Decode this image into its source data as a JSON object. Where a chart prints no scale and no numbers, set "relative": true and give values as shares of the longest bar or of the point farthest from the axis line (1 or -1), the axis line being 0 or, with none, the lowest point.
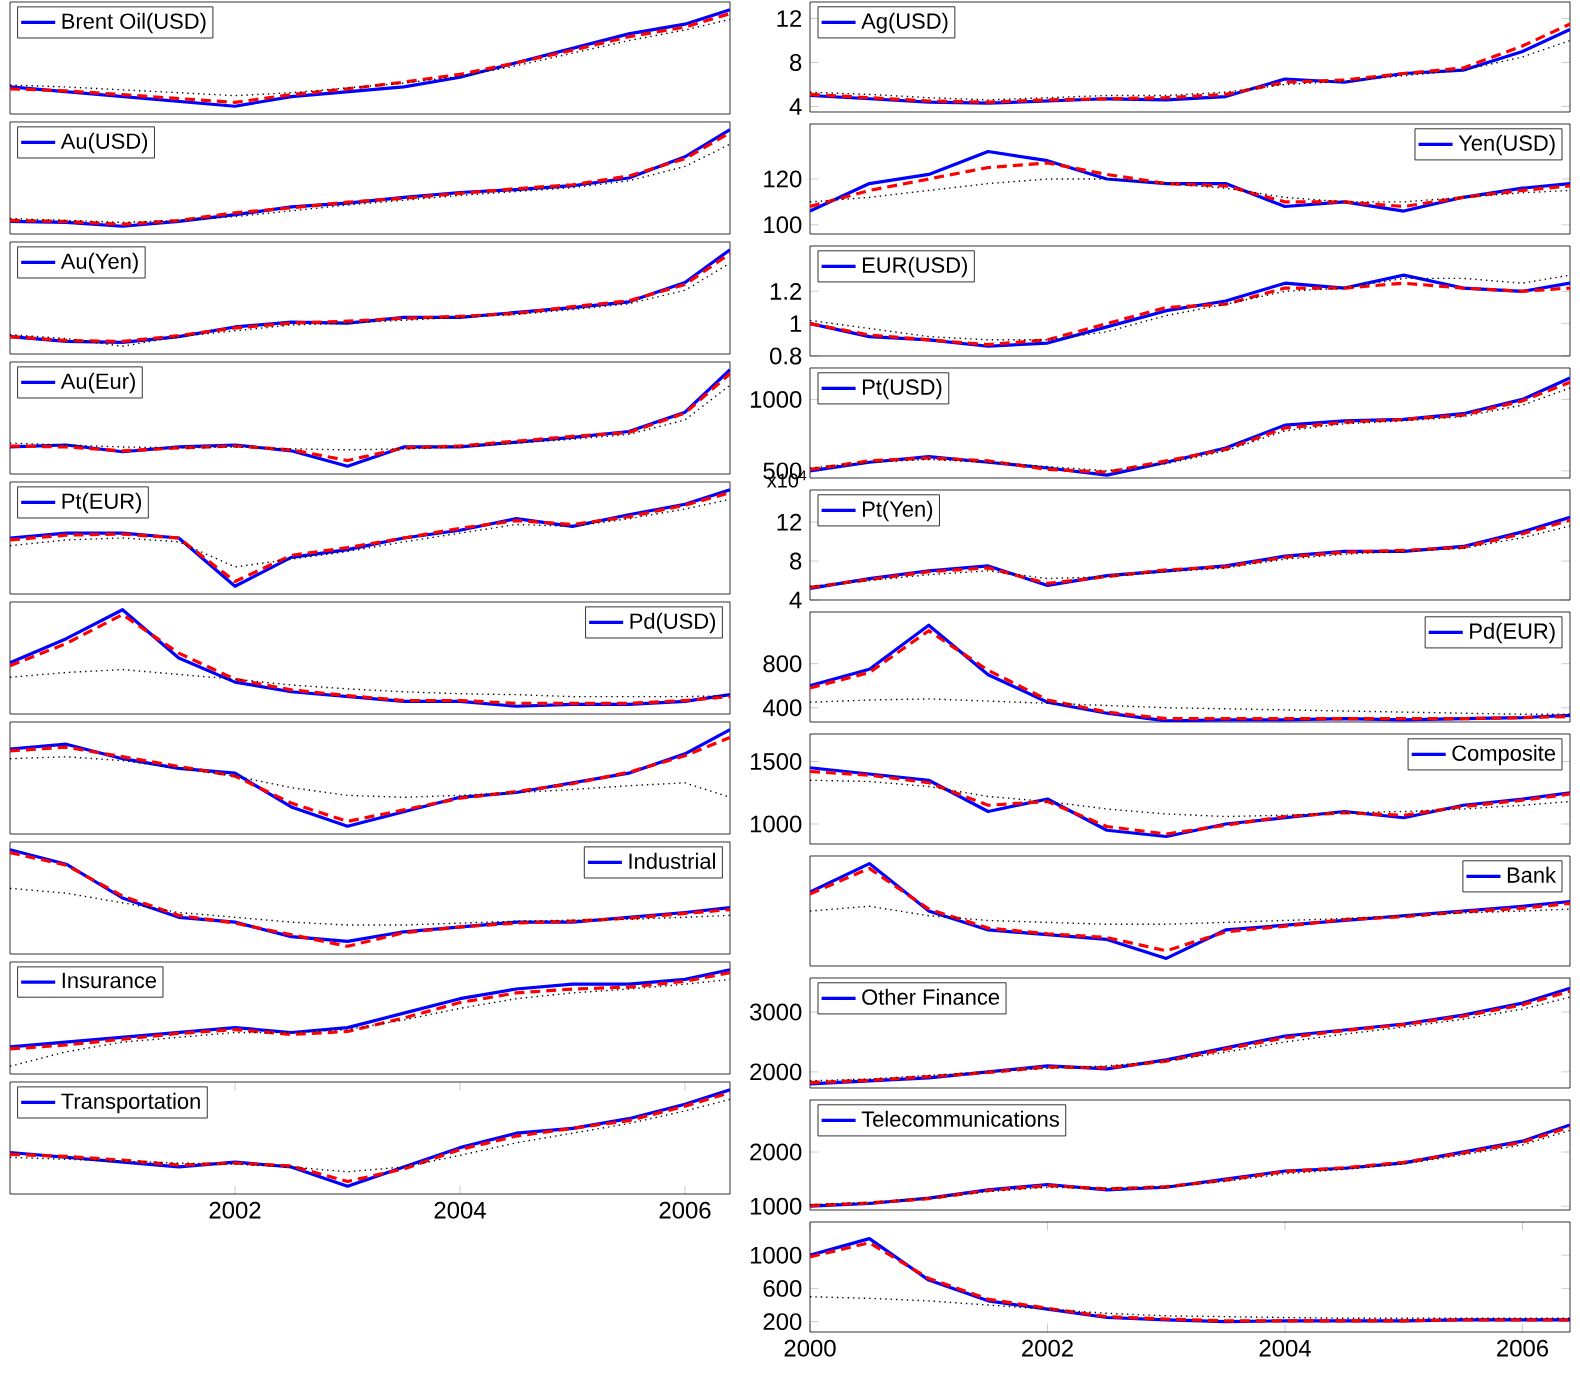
{
  "chart_data": [
    {
      "type": "line",
      "relative": true,
      "tick_labels": false,
      "legend": "top left",
      "xlim": [
        2000,
        2006.4
      ],
      "x": [
        2000,
        2000.5,
        2001,
        2001.5,
        2002,
        2002.5,
        2003,
        2003.5,
        2004,
        2004.5,
        2005,
        2005.5,
        2006,
        2006.4
      ],
      "series": [
        {
          "name": "Brent Oil(USD)",
          "color": "#0000ff",
          "line_style": "solid",
          "values": [
            0.2,
            0.15,
            0.1,
            0.05,
            0.0,
            0.1,
            0.15,
            0.2,
            0.3,
            0.45,
            0.6,
            0.75,
            0.85,
            1.0
          ]
        },
        {
          "color": "#ff0000",
          "line_style": "dashed",
          "values": [
            0.18,
            0.16,
            0.12,
            0.08,
            0.04,
            0.12,
            0.18,
            0.25,
            0.33,
            0.45,
            0.58,
            0.72,
            0.82,
            0.96
          ]
        },
        {
          "color": "#000000",
          "line_style": "dotted",
          "values": [
            0.22,
            0.2,
            0.17,
            0.14,
            0.11,
            0.14,
            0.19,
            0.24,
            0.31,
            0.42,
            0.55,
            0.68,
            0.79,
            0.9
          ]
        }
      ]
    },
    {
      "type": "line",
      "relative": true,
      "tick_labels": false,
      "legend": "top left",
      "xlim": [
        2000,
        2006.4
      ],
      "x": [
        2000,
        2000.5,
        2001,
        2001.5,
        2002,
        2002.5,
        2003,
        2003.5,
        2004,
        2004.5,
        2005,
        2005.5,
        2006,
        2006.4
      ],
      "series": [
        {
          "name": "Au(USD)",
          "color": "#0000ff",
          "line_style": "solid",
          "values": [
            0.05,
            0.04,
            0.0,
            0.05,
            0.12,
            0.2,
            0.24,
            0.3,
            0.35,
            0.38,
            0.42,
            0.5,
            0.72,
            1.0
          ]
        },
        {
          "color": "#ff0000",
          "line_style": "dashed",
          "values": [
            0.06,
            0.05,
            0.02,
            0.06,
            0.14,
            0.19,
            0.25,
            0.29,
            0.34,
            0.39,
            0.43,
            0.52,
            0.7,
            0.97
          ]
        },
        {
          "color": "#000000",
          "line_style": "dotted",
          "values": [
            0.08,
            0.06,
            0.04,
            0.06,
            0.1,
            0.16,
            0.22,
            0.27,
            0.32,
            0.36,
            0.4,
            0.47,
            0.62,
            0.85
          ]
        }
      ]
    },
    {
      "type": "line",
      "relative": true,
      "tick_labels": false,
      "legend": "top left",
      "xlim": [
        2000,
        2006.4
      ],
      "x": [
        2000,
        2000.5,
        2001,
        2001.5,
        2002,
        2002.5,
        2003,
        2003.5,
        2004,
        2004.5,
        2005,
        2005.5,
        2006,
        2006.4
      ],
      "series": [
        {
          "name": "Au(Yen)",
          "color": "#0000ff",
          "line_style": "solid",
          "values": [
            0.1,
            0.05,
            0.04,
            0.1,
            0.2,
            0.25,
            0.24,
            0.3,
            0.3,
            0.35,
            0.4,
            0.46,
            0.66,
            1.0
          ]
        },
        {
          "color": "#ff0000",
          "line_style": "dashed",
          "values": [
            0.1,
            0.06,
            0.05,
            0.11,
            0.19,
            0.24,
            0.26,
            0.29,
            0.31,
            0.34,
            0.41,
            0.47,
            0.64,
            0.96
          ]
        },
        {
          "color": "#000000",
          "line_style": "dotted",
          "values": [
            0.12,
            0.08,
            0.0,
            0.1,
            0.16,
            0.22,
            0.24,
            0.27,
            0.3,
            0.33,
            0.38,
            0.44,
            0.58,
            0.86
          ]
        }
      ]
    },
    {
      "type": "line",
      "relative": true,
      "tick_labels": false,
      "legend": "top left",
      "xlim": [
        2000,
        2006.4
      ],
      "x": [
        2000,
        2000.5,
        2001,
        2001.5,
        2002,
        2002.5,
        2003,
        2003.5,
        2004,
        2004.5,
        2005,
        2005.5,
        2006,
        2006.4
      ],
      "series": [
        {
          "name": "Au(Eur)",
          "color": "#0000ff",
          "line_style": "solid",
          "values": [
            0.2,
            0.22,
            0.15,
            0.2,
            0.22,
            0.16,
            0.0,
            0.2,
            0.2,
            0.25,
            0.3,
            0.36,
            0.56,
            1.0
          ]
        },
        {
          "color": "#ff0000",
          "line_style": "dashed",
          "values": [
            0.21,
            0.2,
            0.16,
            0.19,
            0.21,
            0.17,
            0.06,
            0.19,
            0.21,
            0.26,
            0.31,
            0.35,
            0.55,
            0.96
          ]
        },
        {
          "color": "#000000",
          "line_style": "dotted",
          "values": [
            0.24,
            0.22,
            0.2,
            0.19,
            0.2,
            0.18,
            0.17,
            0.18,
            0.2,
            0.24,
            0.28,
            0.33,
            0.48,
            0.84
          ]
        }
      ]
    },
    {
      "type": "line",
      "relative": true,
      "tick_labels": false,
      "legend": "top left",
      "xlim": [
        2000,
        2006.4
      ],
      "x": [
        2000,
        2000.5,
        2001,
        2001.5,
        2002,
        2002.5,
        2003,
        2003.5,
        2004,
        2004.5,
        2005,
        2005.5,
        2006,
        2006.4
      ],
      "series": [
        {
          "name": "Pt(EUR)",
          "color": "#0000ff",
          "line_style": "solid",
          "values": [
            0.5,
            0.55,
            0.55,
            0.5,
            0.0,
            0.3,
            0.38,
            0.5,
            0.58,
            0.7,
            0.62,
            0.74,
            0.85,
            1.0
          ]
        },
        {
          "color": "#ff0000",
          "line_style": "dashed",
          "values": [
            0.48,
            0.53,
            0.54,
            0.5,
            0.05,
            0.32,
            0.4,
            0.5,
            0.6,
            0.68,
            0.64,
            0.72,
            0.84,
            0.97
          ]
        },
        {
          "color": "#000000",
          "line_style": "dotted",
          "values": [
            0.42,
            0.48,
            0.5,
            0.46,
            0.2,
            0.28,
            0.36,
            0.46,
            0.55,
            0.64,
            0.62,
            0.7,
            0.8,
            0.9
          ]
        }
      ]
    },
    {
      "type": "line",
      "relative": true,
      "tick_labels": false,
      "legend": "top right",
      "xlim": [
        2000,
        2006.4
      ],
      "x": [
        2000,
        2000.5,
        2001,
        2001.5,
        2002,
        2002.5,
        2003,
        2003.5,
        2004,
        2004.5,
        2005,
        2005.5,
        2006,
        2006.4
      ],
      "series": [
        {
          "name": "Pd(USD)",
          "color": "#0000ff",
          "line_style": "solid",
          "values": [
            0.45,
            0.7,
            1.0,
            0.5,
            0.25,
            0.15,
            0.1,
            0.05,
            0.05,
            0.0,
            0.02,
            0.02,
            0.05,
            0.12
          ]
        },
        {
          "color": "#ff0000",
          "line_style": "dashed",
          "values": [
            0.42,
            0.65,
            0.95,
            0.55,
            0.28,
            0.17,
            0.11,
            0.06,
            0.06,
            0.03,
            0.03,
            0.03,
            0.06,
            0.1
          ]
        },
        {
          "color": "#000000",
          "line_style": "dotted",
          "values": [
            0.3,
            0.35,
            0.38,
            0.33,
            0.28,
            0.22,
            0.18,
            0.15,
            0.13,
            0.12,
            0.1,
            0.1,
            0.1,
            0.11
          ]
        }
      ]
    },
    {
      "type": "line",
      "relative": true,
      "tick_labels": false,
      "xlim": [
        2000,
        2006.4
      ],
      "x": [
        2000,
        2000.5,
        2001,
        2001.5,
        2002,
        2002.5,
        2003,
        2003.5,
        2004,
        2004.5,
        2005,
        2005.5,
        2006,
        2006.4
      ],
      "series": [
        {
          "color": "#0000ff",
          "line_style": "solid",
          "values": [
            0.8,
            0.85,
            0.7,
            0.6,
            0.55,
            0.2,
            0.0,
            0.15,
            0.3,
            0.35,
            0.45,
            0.55,
            0.75,
            1.0
          ]
        },
        {
          "color": "#ff0000",
          "line_style": "dashed",
          "values": [
            0.78,
            0.82,
            0.72,
            0.62,
            0.52,
            0.24,
            0.05,
            0.17,
            0.29,
            0.36,
            0.44,
            0.56,
            0.73,
            0.92
          ]
        },
        {
          "color": "#000000",
          "line_style": "dotted",
          "values": [
            0.7,
            0.72,
            0.68,
            0.6,
            0.52,
            0.4,
            0.32,
            0.3,
            0.32,
            0.35,
            0.38,
            0.42,
            0.45,
            0.3
          ]
        }
      ]
    },
    {
      "type": "line",
      "relative": true,
      "tick_labels": false,
      "legend": "top right",
      "xlim": [
        2000,
        2006.4
      ],
      "x": [
        2000,
        2000.5,
        2001,
        2001.5,
        2002,
        2002.5,
        2003,
        2003.5,
        2004,
        2004.5,
        2005,
        2005.5,
        2006,
        2006.4
      ],
      "series": [
        {
          "name": "Industrial",
          "color": "#0000ff",
          "line_style": "solid",
          "values": [
            1.0,
            0.85,
            0.5,
            0.3,
            0.25,
            0.1,
            0.05,
            0.15,
            0.2,
            0.25,
            0.25,
            0.3,
            0.35,
            0.4
          ]
        },
        {
          "color": "#ff0000",
          "line_style": "dashed",
          "values": [
            0.97,
            0.84,
            0.52,
            0.32,
            0.24,
            0.12,
            0.0,
            0.14,
            0.2,
            0.24,
            0.26,
            0.29,
            0.34,
            0.38
          ]
        },
        {
          "color": "#000000",
          "line_style": "dotted",
          "values": [
            0.6,
            0.55,
            0.45,
            0.35,
            0.3,
            0.25,
            0.22,
            0.22,
            0.24,
            0.26,
            0.27,
            0.28,
            0.3,
            0.32
          ]
        }
      ]
    },
    {
      "type": "line",
      "relative": true,
      "tick_labels": false,
      "legend": "top left",
      "xlim": [
        2000,
        2006.4
      ],
      "x": [
        2000,
        2000.5,
        2001,
        2001.5,
        2002,
        2002.5,
        2003,
        2003.5,
        2004,
        2004.5,
        2005,
        2005.5,
        2006,
        2006.4
      ],
      "series": [
        {
          "name": "Insurance",
          "color": "#0000ff",
          "line_style": "solid",
          "values": [
            0.2,
            0.25,
            0.3,
            0.35,
            0.4,
            0.35,
            0.4,
            0.55,
            0.7,
            0.8,
            0.85,
            0.85,
            0.9,
            1.0
          ]
        },
        {
          "color": "#ff0000",
          "line_style": "dashed",
          "values": [
            0.18,
            0.22,
            0.28,
            0.34,
            0.38,
            0.33,
            0.36,
            0.5,
            0.66,
            0.76,
            0.8,
            0.82,
            0.88,
            0.97
          ]
        },
        {
          "color": "#000000",
          "line_style": "dotted",
          "values": [
            0.0,
            0.15,
            0.25,
            0.3,
            0.35,
            0.35,
            0.38,
            0.48,
            0.6,
            0.7,
            0.76,
            0.8,
            0.85,
            0.9
          ]
        }
      ]
    },
    {
      "type": "line",
      "relative": true,
      "tick_labels": "x",
      "legend": "top left",
      "xlim": [
        2000,
        2006.4
      ],
      "xticks": [
        2002,
        2004,
        2006
      ],
      "x": [
        2000,
        2000.5,
        2001,
        2001.5,
        2002,
        2002.5,
        2003,
        2003.5,
        2004,
        2004.5,
        2005,
        2005.5,
        2006,
        2006.4
      ],
      "series": [
        {
          "name": "Transportation",
          "color": "#0000ff",
          "line_style": "solid",
          "values": [
            0.35,
            0.3,
            0.25,
            0.2,
            0.25,
            0.2,
            0.0,
            0.2,
            0.4,
            0.55,
            0.6,
            0.7,
            0.85,
            1.0
          ]
        },
        {
          "color": "#ff0000",
          "line_style": "dashed",
          "values": [
            0.33,
            0.31,
            0.27,
            0.22,
            0.24,
            0.21,
            0.05,
            0.18,
            0.38,
            0.52,
            0.6,
            0.68,
            0.83,
            0.97
          ]
        },
        {
          "color": "#000000",
          "line_style": "dotted",
          "values": [
            0.3,
            0.28,
            0.26,
            0.24,
            0.23,
            0.2,
            0.15,
            0.2,
            0.32,
            0.45,
            0.55,
            0.65,
            0.78,
            0.9
          ]
        }
      ]
    },
    {
      "type": "line",
      "tick_labels": "y",
      "legend": "top left",
      "xlim": [
        2000,
        2006.4
      ],
      "ylim": [
        3.5,
        13.5
      ],
      "yticks": [
        4,
        8,
        12
      ],
      "x": [
        2000,
        2000.5,
        2001,
        2001.5,
        2002,
        2002.5,
        2003,
        2003.5,
        2004,
        2004.5,
        2005,
        2005.5,
        2006,
        2006.4
      ],
      "series": [
        {
          "name": "Ag(USD)",
          "color": "#0000ff",
          "line_style": "solid",
          "values": [
            5,
            4.7,
            4.4,
            4.3,
            4.5,
            4.7,
            4.6,
            4.9,
            6.5,
            6.2,
            7,
            7.3,
            9,
            11
          ]
        },
        {
          "color": "#ff0000",
          "line_style": "dashed",
          "values": [
            5.1,
            4.8,
            4.5,
            4.4,
            4.6,
            4.7,
            4.8,
            5.1,
            6.2,
            6.4,
            7,
            7.5,
            9.5,
            11.5
          ]
        },
        {
          "color": "#000000",
          "line_style": "dotted",
          "values": [
            5.3,
            5.1,
            4.8,
            4.6,
            4.8,
            5,
            5,
            5.3,
            6,
            6.3,
            6.8,
            7.3,
            8.5,
            10
          ]
        }
      ]
    },
    {
      "type": "line",
      "tick_labels": "y",
      "legend": "top right",
      "xlim": [
        2000,
        2006.4
      ],
      "ylim": [
        96,
        144
      ],
      "yticks": [
        100,
        120
      ],
      "x": [
        2000,
        2000.5,
        2001,
        2001.5,
        2002,
        2002.5,
        2003,
        2003.5,
        2004,
        2004.5,
        2005,
        2005.5,
        2006,
        2006.4
      ],
      "series": [
        {
          "name": "Yen(USD)",
          "color": "#0000ff",
          "line_style": "solid",
          "values": [
            106,
            118,
            122,
            132,
            128,
            120,
            118,
            118,
            108,
            110,
            106,
            112,
            116,
            118
          ]
        },
        {
          "color": "#ff0000",
          "line_style": "dashed",
          "values": [
            108,
            115,
            120,
            125,
            127,
            122,
            118,
            117,
            110,
            110,
            108,
            112,
            115,
            117
          ]
        },
        {
          "color": "#000000",
          "line_style": "dotted",
          "values": [
            110,
            112,
            115,
            118,
            120,
            120,
            118,
            116,
            112,
            110,
            110,
            112,
            114,
            115
          ]
        }
      ]
    },
    {
      "type": "line",
      "tick_labels": "y",
      "legend": "top left",
      "xlim": [
        2000,
        2006.4
      ],
      "ylim": [
        0.8,
        1.48
      ],
      "yticks": [
        0.8,
        1,
        1.2
      ],
      "x": [
        2000,
        2000.5,
        2001,
        2001.5,
        2002,
        2002.5,
        2003,
        2003.5,
        2004,
        2004.5,
        2005,
        2005.5,
        2006,
        2006.4
      ],
      "series": [
        {
          "name": "EUR(USD)",
          "color": "#0000ff",
          "line_style": "solid",
          "values": [
            1.0,
            0.92,
            0.9,
            0.86,
            0.88,
            0.98,
            1.08,
            1.14,
            1.25,
            1.22,
            1.3,
            1.22,
            1.2,
            1.25
          ]
        },
        {
          "color": "#ff0000",
          "line_style": "dashed",
          "values": [
            1.0,
            0.93,
            0.9,
            0.87,
            0.9,
            1.0,
            1.1,
            1.12,
            1.22,
            1.22,
            1.25,
            1.22,
            1.2,
            1.22
          ]
        },
        {
          "color": "#000000",
          "line_style": "dotted",
          "values": [
            1.02,
            0.97,
            0.92,
            0.9,
            0.9,
            0.95,
            1.05,
            1.12,
            1.2,
            1.22,
            1.28,
            1.28,
            1.25,
            1.3
          ]
        }
      ]
    },
    {
      "type": "line",
      "tick_labels": "y",
      "legend": "top left",
      "xlim": [
        2000,
        2006.4
      ],
      "ylim": [
        450,
        1220
      ],
      "yticks": [
        500,
        1000
      ],
      "x": [
        2000,
        2000.5,
        2001,
        2001.5,
        2002,
        2002.5,
        2003,
        2003.5,
        2004,
        2004.5,
        2005,
        2005.5,
        2006,
        2006.4
      ],
      "series": [
        {
          "name": "Pt(USD)",
          "color": "#0000ff",
          "line_style": "solid",
          "values": [
            500,
            560,
            600,
            560,
            520,
            470,
            560,
            660,
            820,
            850,
            860,
            900,
            1000,
            1150
          ]
        },
        {
          "color": "#ff0000",
          "line_style": "dashed",
          "values": [
            510,
            570,
            590,
            570,
            510,
            490,
            570,
            650,
            800,
            840,
            860,
            890,
            990,
            1120
          ]
        },
        {
          "color": "#000000",
          "line_style": "dotted",
          "values": [
            520,
            560,
            580,
            560,
            530,
            500,
            550,
            640,
            780,
            830,
            850,
            880,
            960,
            1080
          ]
        }
      ]
    },
    {
      "type": "line",
      "tick_labels": "y",
      "legend": "top left",
      "xlim": [
        2000,
        2006.4
      ],
      "ylim": [
        4,
        15.3
      ],
      "yticks": [
        4,
        8,
        12
      ],
      "annotations": [
        "x10$^{4}$"
      ],
      "x": [
        2000,
        2000.5,
        2001,
        2001.5,
        2002,
        2002.5,
        2003,
        2003.5,
        2004,
        2004.5,
        2005,
        2005.5,
        2006,
        2006.4
      ],
      "series": [
        {
          "name": "Pt(Yen)",
          "color": "#0000ff",
          "line_style": "solid",
          "values": [
            5.2,
            6.2,
            7,
            7.5,
            5.5,
            6.5,
            7,
            7.5,
            8.5,
            9,
            9,
            9.5,
            11,
            12.5
          ]
        },
        {
          "color": "#ff0000",
          "line_style": "dashed",
          "values": [
            5.3,
            6.1,
            6.9,
            7.3,
            5.7,
            6.4,
            7.1,
            7.4,
            8.4,
            8.9,
            9.1,
            9.4,
            10.8,
            12.2
          ]
        },
        {
          "color": "#000000",
          "line_style": "dotted",
          "values": [
            5.4,
            6,
            6.6,
            7,
            6.2,
            6.4,
            6.9,
            7.3,
            8.2,
            8.7,
            9,
            9.3,
            10.4,
            11.6
          ]
        }
      ]
    },
    {
      "type": "line",
      "tick_labels": "y",
      "legend": "top right",
      "xlim": [
        2000,
        2006.4
      ],
      "ylim": [
        270,
        1270
      ],
      "yticks": [
        400,
        800
      ],
      "x": [
        2000,
        2000.5,
        2001,
        2001.5,
        2002,
        2002.5,
        2003,
        2003.5,
        2004,
        2004.5,
        2005,
        2005.5,
        2006,
        2006.4
      ],
      "series": [
        {
          "name": "Pd(EUR)",
          "color": "#0000ff",
          "line_style": "solid",
          "values": [
            600,
            750,
            1150,
            700,
            450,
            350,
            280,
            290,
            290,
            300,
            290,
            300,
            310,
            330
          ]
        },
        {
          "color": "#ff0000",
          "line_style": "dashed",
          "values": [
            580,
            720,
            1100,
            740,
            470,
            360,
            300,
            300,
            300,
            300,
            300,
            300,
            310,
            320
          ]
        },
        {
          "color": "#000000",
          "line_style": "dotted",
          "values": [
            450,
            470,
            480,
            460,
            440,
            420,
            400,
            390,
            380,
            370,
            360,
            350,
            340,
            340
          ]
        }
      ]
    },
    {
      "type": "line",
      "tick_labels": "y",
      "legend": "top right",
      "xlim": [
        2000,
        2006.4
      ],
      "ylim": [
        840,
        1720
      ],
      "yticks": [
        1000,
        1500
      ],
      "x": [
        2000,
        2000.5,
        2001,
        2001.5,
        2002,
        2002.5,
        2003,
        2003.5,
        2004,
        2004.5,
        2005,
        2005.5,
        2006,
        2006.4
      ],
      "series": [
        {
          "name": "Composite",
          "color": "#0000ff",
          "line_style": "solid",
          "values": [
            1450,
            1400,
            1350,
            1100,
            1200,
            950,
            900,
            1000,
            1050,
            1100,
            1050,
            1150,
            1200,
            1250
          ]
        },
        {
          "color": "#ff0000",
          "line_style": "dashed",
          "values": [
            1420,
            1390,
            1330,
            1150,
            1180,
            980,
            920,
            990,
            1060,
            1090,
            1070,
            1140,
            1190,
            1240
          ]
        },
        {
          "color": "#000000",
          "line_style": "dotted",
          "values": [
            1350,
            1340,
            1300,
            1220,
            1180,
            1120,
            1080,
            1060,
            1070,
            1090,
            1100,
            1120,
            1150,
            1180
          ]
        }
      ]
    },
    {
      "type": "line",
      "relative": true,
      "tick_labels": false,
      "legend": "top right",
      "xlim": [
        2000,
        2006.4
      ],
      "x": [
        2000,
        2000.5,
        2001,
        2001.5,
        2002,
        2002.5,
        2003,
        2003.5,
        2004,
        2004.5,
        2005,
        2005.5,
        2006,
        2006.4
      ],
      "series": [
        {
          "name": "Bank",
          "color": "#0000ff",
          "line_style": "solid",
          "values": [
            0.7,
            1.0,
            0.5,
            0.3,
            0.25,
            0.2,
            0.0,
            0.3,
            0.35,
            0.4,
            0.45,
            0.5,
            0.55,
            0.6
          ]
        },
        {
          "color": "#ff0000",
          "line_style": "dashed",
          "values": [
            0.68,
            0.95,
            0.52,
            0.32,
            0.26,
            0.22,
            0.08,
            0.28,
            0.34,
            0.41,
            0.44,
            0.49,
            0.53,
            0.58
          ]
        },
        {
          "color": "#000000",
          "line_style": "dotted",
          "values": [
            0.5,
            0.55,
            0.45,
            0.4,
            0.38,
            0.36,
            0.36,
            0.38,
            0.4,
            0.42,
            0.45,
            0.48,
            0.5,
            0.52
          ]
        }
      ]
    },
    {
      "type": "line",
      "tick_labels": "y",
      "legend": "top left",
      "xlim": [
        2000,
        2006.4
      ],
      "ylim": [
        1730,
        3570
      ],
      "yticks": [
        2000,
        3000
      ],
      "x": [
        2000,
        2000.5,
        2001,
        2001.5,
        2002,
        2002.5,
        2003,
        2003.5,
        2004,
        2004.5,
        2005,
        2005.5,
        2006,
        2006.4
      ],
      "series": [
        {
          "name": "Other Finance",
          "color": "#0000ff",
          "line_style": "solid",
          "values": [
            1800,
            1850,
            1900,
            2000,
            2100,
            2050,
            2200,
            2400,
            2600,
            2700,
            2800,
            2950,
            3150,
            3400
          ]
        },
        {
          "color": "#ff0000",
          "line_style": "dashed",
          "values": [
            1820,
            1860,
            1920,
            1990,
            2080,
            2070,
            2180,
            2380,
            2570,
            2690,
            2790,
            2930,
            3120,
            3350
          ]
        },
        {
          "color": "#000000",
          "line_style": "dotted",
          "values": [
            1850,
            1880,
            1940,
            2000,
            2060,
            2100,
            2180,
            2330,
            2500,
            2630,
            2750,
            2880,
            3050,
            3250
          ]
        }
      ]
    },
    {
      "type": "line",
      "tick_labels": "y",
      "legend": "top left",
      "xlim": [
        2000,
        2006.4
      ],
      "ylim": [
        930,
        2960
      ],
      "yticks": [
        1000,
        2000
      ],
      "x": [
        2000,
        2000.5,
        2001,
        2001.5,
        2002,
        2002.5,
        2003,
        2003.5,
        2004,
        2004.5,
        2005,
        2005.5,
        2006,
        2006.4
      ],
      "series": [
        {
          "name": "Telecommunications",
          "color": "#0000ff",
          "line_style": "solid",
          "values": [
            1000,
            1050,
            1150,
            1300,
            1400,
            1300,
            1350,
            1500,
            1650,
            1700,
            1800,
            2000,
            2200,
            2500
          ]
        },
        {
          "color": "#ff0000",
          "line_style": "dashed",
          "values": [
            1010,
            1060,
            1140,
            1290,
            1380,
            1320,
            1360,
            1480,
            1640,
            1710,
            1810,
            1980,
            2180,
            2460
          ]
        },
        {
          "color": "#000000",
          "line_style": "dotted",
          "values": [
            1030,
            1070,
            1150,
            1270,
            1350,
            1330,
            1360,
            1460,
            1600,
            1680,
            1780,
            1950,
            2130,
            2400
          ]
        }
      ]
    },
    {
      "type": "line",
      "xlim": [
        2000,
        2006.4
      ],
      "xticks": [
        2000,
        2002,
        2004,
        2006
      ],
      "ylim": [
        75,
        1400
      ],
      "yticks": [
        200,
        600,
        1000
      ],
      "x": [
        2000,
        2000.5,
        2001,
        2001.5,
        2002,
        2002.5,
        2003,
        2003.5,
        2004,
        2004.5,
        2005,
        2005.5,
        2006,
        2006.4
      ],
      "series": [
        {
          "color": "#0000ff",
          "line_style": "solid",
          "values": [
            1000,
            1200,
            700,
            450,
            350,
            250,
            220,
            200,
            210,
            210,
            210,
            220,
            220,
            220
          ]
        },
        {
          "color": "#ff0000",
          "line_style": "dashed",
          "values": [
            980,
            1150,
            720,
            470,
            360,
            260,
            230,
            210,
            210,
            210,
            210,
            220,
            220,
            220
          ]
        },
        {
          "color": "#000000",
          "line_style": "dotted",
          "values": [
            500,
            480,
            450,
            400,
            350,
            300,
            270,
            260,
            250,
            240,
            240,
            240,
            240,
            240
          ]
        }
      ]
    }
  ]
}
